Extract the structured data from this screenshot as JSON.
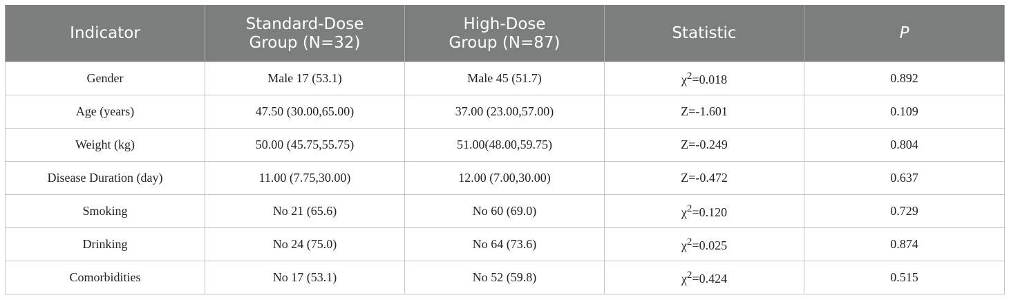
{
  "table": {
    "headers": [
      {
        "label": "Indicator"
      },
      {
        "line1": "Standard-Dose",
        "line2": "Group (N=32)"
      },
      {
        "line1": "High-Dose",
        "line2": "Group (N=87)"
      },
      {
        "label": "Statistic"
      },
      {
        "label": "P"
      }
    ],
    "rows": [
      {
        "indicator": "Gender",
        "standard": "Male 17 (53.1)",
        "high": "Male 45 (51.7)",
        "stat_sym": "χ",
        "stat_sup": "2",
        "stat_val": "=0.018",
        "p": "0.892"
      },
      {
        "indicator": "Age (years)",
        "standard": "47.50 (30.00,65.00)",
        "high": "37.00 (23.00,57.00)",
        "stat_sym": "",
        "stat_sup": "",
        "stat_val": "Z=-1.601",
        "p": "0.109"
      },
      {
        "indicator": "Weight (kg)",
        "standard": "50.00 (45.75,55.75)",
        "high": "51.00(48.00,59.75)",
        "stat_sym": "",
        "stat_sup": "",
        "stat_val": "Z=-0.249",
        "p": "0.804"
      },
      {
        "indicator": "Disease Duration (day)",
        "standard": "11.00 (7.75,30.00)",
        "high": "12.00 (7.00,30.00)",
        "stat_sym": "",
        "stat_sup": "",
        "stat_val": "Z=-0.472",
        "p": "0.637"
      },
      {
        "indicator": "Smoking",
        "standard": "No 21 (65.6)",
        "high": "No 60 (69.0)",
        "stat_sym": "χ",
        "stat_sup": "2",
        "stat_val": "=0.120",
        "p": "0.729"
      },
      {
        "indicator": "Drinking",
        "standard": "No 24 (75.0)",
        "high": "No 64 (73.6)",
        "stat_sym": "χ",
        "stat_sup": "2",
        "stat_val": "=0.025",
        "p": "0.874"
      },
      {
        "indicator": "Comorbidities",
        "standard": "No 17 (53.1)",
        "high": "No 52 (59.8)",
        "stat_sym": "χ",
        "stat_sup": "2",
        "stat_val": "=0.424",
        "p": "0.515"
      }
    ],
    "colors": {
      "header_bg": "#7b7e7d",
      "header_text": "#ffffff",
      "border": "#c4c4c4"
    }
  }
}
